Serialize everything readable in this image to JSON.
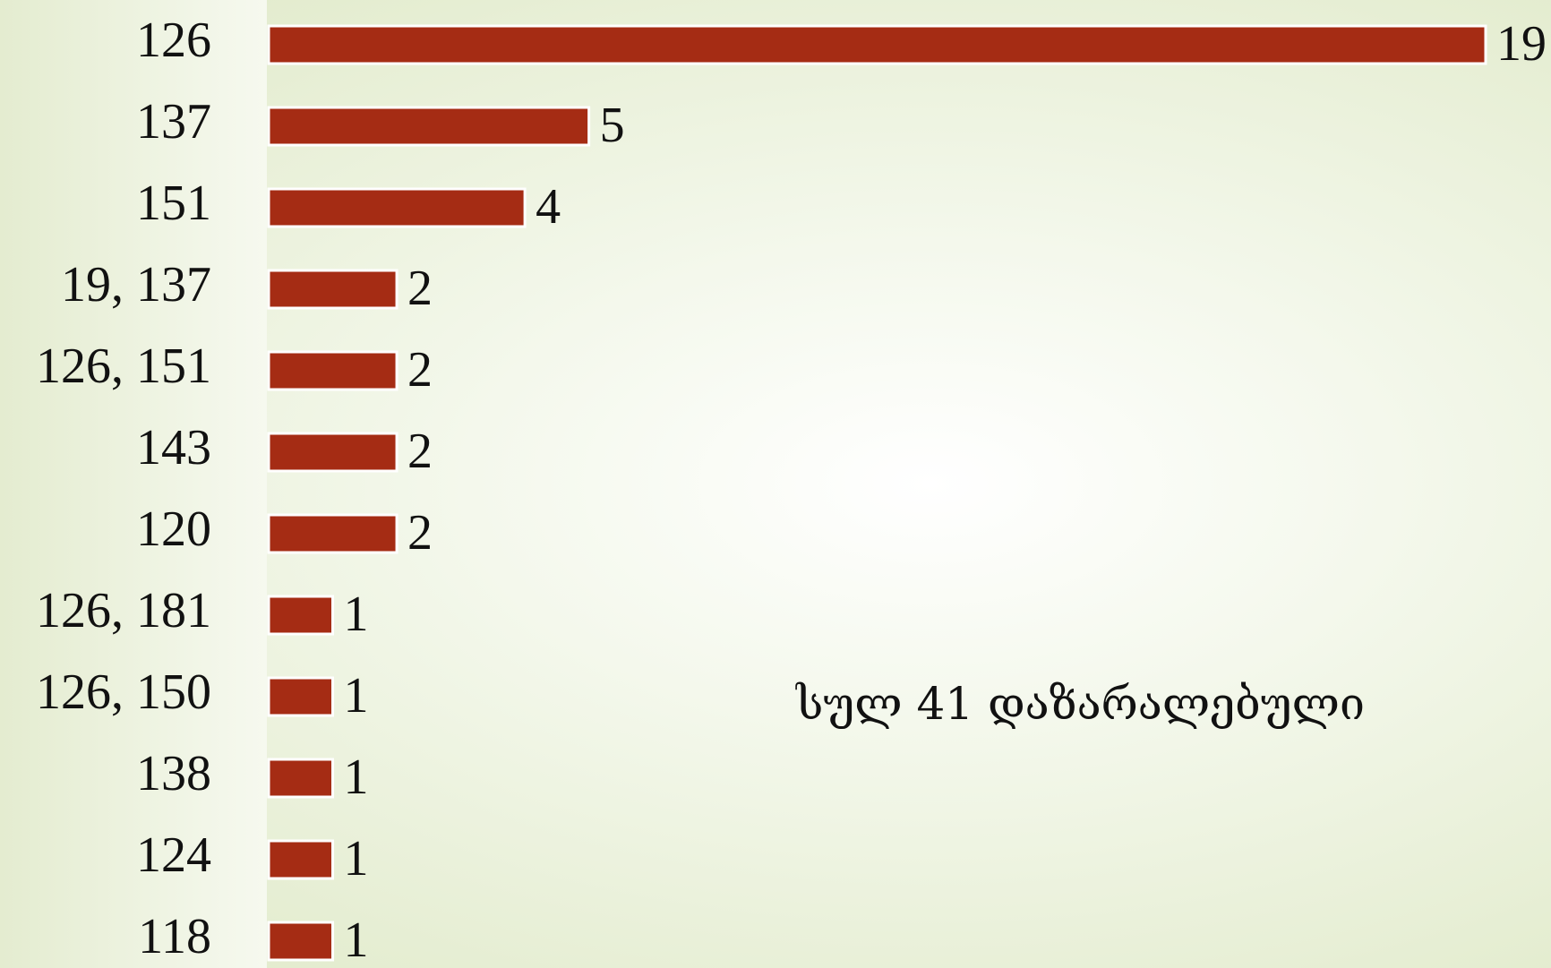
{
  "chart_data": {
    "type": "barh",
    "categories": [
      "126",
      "137",
      "151",
      "19, 137",
      "126, 151",
      "143",
      "120",
      "126, 181",
      "126, 150",
      "138",
      "124",
      "118"
    ],
    "values": [
      19,
      5,
      4,
      2,
      2,
      2,
      2,
      1,
      1,
      1,
      1,
      1
    ],
    "color": "#a52c14",
    "annotation": "სულ 41 დაზარალებული"
  }
}
